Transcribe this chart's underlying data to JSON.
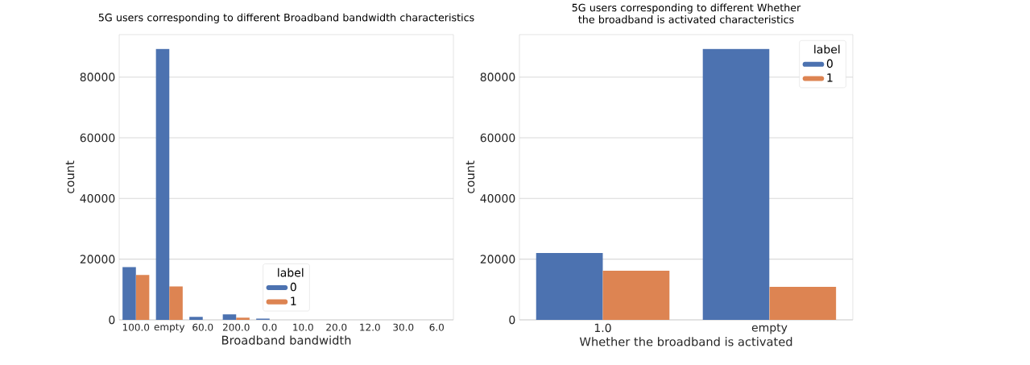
{
  "chart_data": [
    {
      "type": "bar",
      "title": "5G users corresponding to different Broadband bandwidth characteristics",
      "xlabel": "Broadband bandwidth",
      "ylabel": "count",
      "legend_title": "label",
      "categories": [
        "100.0",
        "empty",
        "60.0",
        "200.0",
        "0.0",
        "10.0",
        "20.0",
        "12.0",
        "30.0",
        "6.0"
      ],
      "series": [
        {
          "name": "0",
          "color": "#4c72b0",
          "values": [
            17400,
            89300,
            1000,
            1800,
            400,
            0,
            0,
            0,
            0,
            0
          ]
        },
        {
          "name": "1",
          "color": "#dd8452",
          "values": [
            14800,
            11000,
            null,
            700,
            null,
            0,
            0,
            0,
            0,
            0
          ]
        }
      ],
      "ylim": [
        0,
        94000
      ],
      "yticks": [
        0,
        20000,
        40000,
        60000,
        80000
      ],
      "grid": "y",
      "legend": "bottom"
    },
    {
      "type": "bar",
      "title": "5G users corresponding to different Whether the broadband is activated characteristics",
      "xlabel": "Whether the broadband is activated",
      "ylabel": "count",
      "legend_title": "label",
      "categories": [
        "1.0",
        "empty"
      ],
      "series": [
        {
          "name": "0",
          "color": "#4c72b0",
          "values": [
            22000,
            89300
          ]
        },
        {
          "name": "1",
          "color": "#dd8452",
          "values": [
            16200,
            10900
          ]
        }
      ],
      "ylim": [
        0,
        94000
      ],
      "yticks": [
        0,
        20000,
        40000,
        60000,
        80000
      ],
      "grid": "y",
      "legend": "top right"
    }
  ]
}
